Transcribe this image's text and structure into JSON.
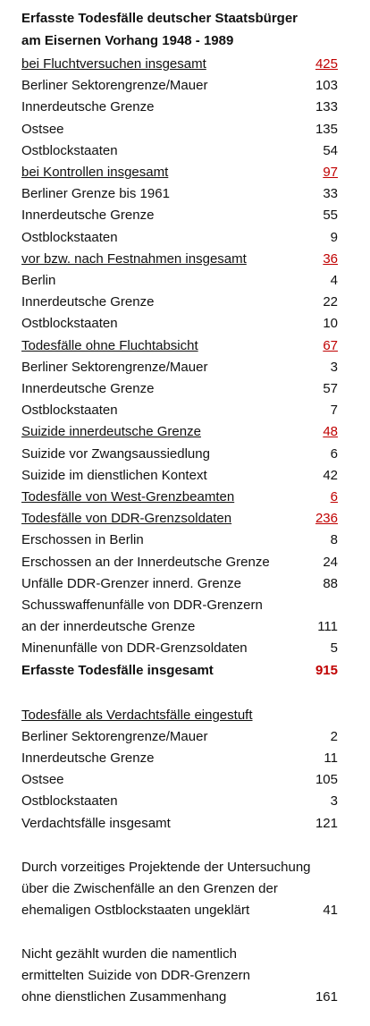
{
  "title": [
    "Erfasste Todesfälle deutscher Staatsbürger",
    "am Eisernen Vorhang 1948 - 1989"
  ],
  "groups": [
    {
      "header": {
        "label": "bei Fluchtversuchen insgesamt",
        "value": 425
      },
      "rows": [
        {
          "label": "Berliner Sektorengrenze/Mauer",
          "value": 103
        },
        {
          "label": "Innerdeutsche Grenze",
          "value": 133
        },
        {
          "label": "Ostsee",
          "value": 135
        },
        {
          "label": "Ostblockstaaten",
          "value": 54
        }
      ]
    },
    {
      "header": {
        "label": "bei Kontrollen insgesamt",
        "value": 97
      },
      "rows": [
        {
          "label": "Berliner Grenze bis 1961",
          "value": 33
        },
        {
          "label": "Innerdeutsche Grenze",
          "value": 55
        },
        {
          "label": "Ostblockstaaten",
          "value": 9
        }
      ]
    },
    {
      "header": {
        "label": "vor bzw. nach Festnahmen insgesamt",
        "value": 36
      },
      "rows": [
        {
          "label": "Berlin",
          "value": 4
        },
        {
          "label": "Innerdeutsche Grenze",
          "value": 22
        },
        {
          "label": "Ostblockstaaten",
          "value": 10
        }
      ]
    },
    {
      "header": {
        "label": "Todesfälle ohne Fluchtabsicht",
        "value": 67
      },
      "rows": [
        {
          "label": "Berliner Sektorengrenze/Mauer",
          "value": 3
        },
        {
          "label": "Innerdeutsche Grenze",
          "value": 57
        },
        {
          "label": "Ostblockstaaten",
          "value": 7
        }
      ]
    },
    {
      "header": {
        "label": "Suizide innerdeutsche Grenze",
        "value": 48
      },
      "rows": [
        {
          "label": "Suizide vor Zwangsaussiedlung",
          "value": 6
        },
        {
          "label": "Suizide im dienstlichen Kontext",
          "value": 42
        }
      ]
    },
    {
      "header": {
        "label": "Todesfälle von West-Grenzbeamten",
        "value": 6
      },
      "rows": []
    },
    {
      "header": {
        "label": "Todesfälle von DDR-Grenzsoldaten",
        "value": 236
      },
      "rows": [
        {
          "label": "Erschossen in Berlin",
          "value": 8
        },
        {
          "label": "Erschossen an der Innerdeutsche Grenze",
          "value": 24
        },
        {
          "label": "Unfälle DDR-Grenzer innerd. Grenze",
          "value": 88
        },
        {
          "label": [
            "Schusswaffenunfälle von DDR-Grenzern",
            "an der innerdeutsche Grenze"
          ],
          "value": 111
        },
        {
          "label": "Minenunfälle von DDR-Grenzsoldaten",
          "value": 5
        }
      ]
    }
  ],
  "total": {
    "label": "Erfasste Todesfälle insgesamt",
    "value": 915
  },
  "suspected": {
    "header": "Todesfälle als Verdachtsfälle eingestuft",
    "rows": [
      {
        "label": "Berliner Sektorengrenze/Mauer",
        "value": 2
      },
      {
        "label": "Innerdeutsche Grenze",
        "value": 11
      },
      {
        "label": "Ostsee",
        "value": 105
      },
      {
        "label": "Ostblockstaaten",
        "value": 3
      },
      {
        "label": "Verdachtsfälle insgesamt",
        "value": 121
      }
    ]
  },
  "notes": [
    {
      "lines": [
        "Durch vorzeitiges Projektende der Untersuchung",
        "über die Zwischenfälle an den Grenzen der",
        "ehemaligen Ostblockstaaten ungeklärt"
      ],
      "value": 41
    },
    {
      "lines": [
        "Nicht gezählt wurden die namentlich",
        "ermittelten Suizide von DDR-Grenzern",
        "ohne dienstlichen Zusammenhang"
      ],
      "value": 161
    }
  ]
}
